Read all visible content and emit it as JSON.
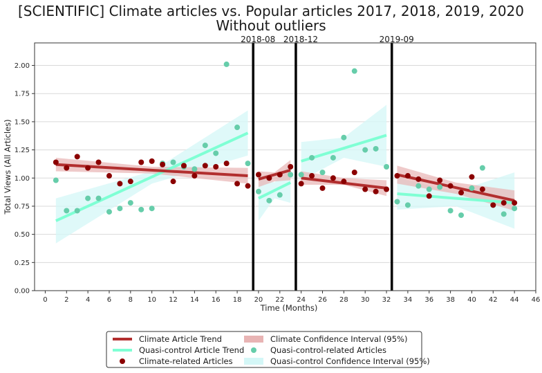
{
  "chart_data": {
    "type": "scatter",
    "title": "[SCIENTIFIC] Climate articles vs. Popular articles 2017, 2018, 2019, 2020",
    "subtitle": "Without outliers",
    "xlabel": "Time (Months)",
    "ylabel": "Total Views (All Articles)",
    "xlim": [
      -1,
      46
    ],
    "ylim": [
      0,
      2.2
    ],
    "xticks": [
      0,
      2,
      4,
      6,
      8,
      10,
      12,
      14,
      16,
      18,
      20,
      22,
      24,
      26,
      28,
      30,
      32,
      34,
      36,
      38,
      40,
      42,
      44,
      46
    ],
    "yticks": [
      0.0,
      0.25,
      0.5,
      0.75,
      1.0,
      1.25,
      1.5,
      1.75,
      2.0
    ],
    "grid": "horizontal",
    "legend_position": "bottom-center",
    "vertical_lines": [
      {
        "x": 19.5,
        "label": "2018-08"
      },
      {
        "x": 23.5,
        "label": "2018-12"
      },
      {
        "x": 32.5,
        "label": "2019-09"
      }
    ],
    "colors": {
      "climate_trend": "#b22f2f",
      "climate_points": "#8b0000",
      "climate_ci": "#e8b4b4",
      "quasi_trend": "#7fffd4",
      "quasi_points": "#66cdaa",
      "quasi_ci": "#d4f7f7"
    },
    "series": [
      {
        "name": "Climate-related Articles",
        "kind": "points",
        "x": [
          1,
          2,
          3,
          4,
          5,
          6,
          7,
          8,
          9,
          10,
          11,
          12,
          13,
          14,
          15,
          16,
          17,
          18,
          19,
          20,
          21,
          22,
          23,
          24,
          25,
          26,
          27,
          28,
          29,
          30,
          31,
          32,
          33,
          34,
          35,
          36,
          37,
          38,
          39,
          40,
          41,
          42,
          43,
          44
        ],
        "y": [
          1.14,
          1.09,
          1.19,
          1.09,
          1.14,
          1.02,
          0.95,
          0.97,
          1.14,
          1.15,
          1.12,
          0.97,
          1.11,
          1.02,
          1.11,
          1.1,
          1.13,
          0.95,
          0.93,
          1.03,
          1.0,
          1.03,
          1.1,
          0.95,
          1.02,
          0.91,
          1.0,
          0.97,
          1.05,
          0.9,
          0.88,
          0.9,
          1.02,
          1.02,
          0.99,
          0.84,
          0.98,
          0.93,
          0.87,
          1.01,
          0.9,
          0.76,
          0.78,
          0.78
        ]
      },
      {
        "name": "Quasi-control-related Articles",
        "kind": "points",
        "x": [
          1,
          2,
          3,
          4,
          5,
          6,
          7,
          8,
          9,
          10,
          11,
          12,
          13,
          14,
          15,
          16,
          17,
          18,
          19,
          20,
          21,
          22,
          23,
          24,
          25,
          26,
          27,
          28,
          29,
          30,
          31,
          32,
          33,
          34,
          35,
          36,
          37,
          38,
          39,
          40,
          41,
          42,
          43,
          44
        ],
        "y": [
          0.98,
          0.71,
          0.71,
          0.82,
          0.82,
          0.7,
          0.73,
          0.78,
          0.72,
          0.73,
          1.13,
          1.14,
          1.1,
          1.08,
          1.29,
          1.22,
          2.01,
          1.45,
          1.13,
          0.88,
          0.8,
          0.85,
          1.03,
          1.03,
          1.18,
          1.05,
          1.18,
          1.36,
          1.95,
          1.25,
          1.26,
          1.1,
          0.79,
          0.76,
          0.93,
          0.9,
          0.92,
          0.71,
          0.67,
          0.91,
          1.09,
          0.76,
          0.68,
          0.73
        ]
      },
      {
        "name": "Climate Article Trend",
        "kind": "trend",
        "segments": [
          {
            "x": [
              1,
              19
            ],
            "y": [
              1.12,
              1.02
            ]
          },
          {
            "x": [
              20,
              23
            ],
            "y": [
              0.99,
              1.07
            ]
          },
          {
            "x": [
              24,
              32
            ],
            "y": [
              1.0,
              0.91
            ]
          },
          {
            "x": [
              33,
              44
            ],
            "y": [
              1.03,
              0.8
            ]
          }
        ]
      },
      {
        "name": "Quasi-control Article Trend",
        "kind": "trend",
        "segments": [
          {
            "x": [
              1,
              19
            ],
            "y": [
              0.62,
              1.4
            ]
          },
          {
            "x": [
              20,
              23
            ],
            "y": [
              0.82,
              0.96
            ]
          },
          {
            "x": [
              24,
              32
            ],
            "y": [
              1.15,
              1.38
            ]
          },
          {
            "x": [
              33,
              44
            ],
            "y": [
              0.86,
              0.78
            ]
          }
        ]
      },
      {
        "name": "Climate Confidence Interval (95%)",
        "kind": "band",
        "segments": [
          {
            "x": [
              1,
              10,
              19
            ],
            "lower": [
              1.06,
              1.04,
              0.95
            ],
            "upper": [
              1.18,
              1.1,
              1.09
            ]
          },
          {
            "x": [
              20,
              21.5,
              23
            ],
            "lower": [
              0.92,
              0.97,
              0.98
            ],
            "upper": [
              1.06,
              1.05,
              1.16
            ]
          },
          {
            "x": [
              24,
              28,
              32
            ],
            "lower": [
              0.94,
              0.94,
              0.84
            ],
            "upper": [
              1.06,
              1.0,
              0.98
            ]
          },
          {
            "x": [
              33,
              38.5,
              44
            ],
            "lower": [
              0.95,
              0.86,
              0.71
            ],
            "upper": [
              1.11,
              0.96,
              0.89
            ]
          }
        ]
      },
      {
        "name": "Quasi-control Confidence Interval (95%)",
        "kind": "band",
        "segments": [
          {
            "x": [
              1,
              10,
              19
            ],
            "lower": [
              0.42,
              0.95,
              1.2
            ],
            "upper": [
              0.82,
              1.06,
              1.6
            ]
          },
          {
            "x": [
              20,
              21.5,
              23
            ],
            "lower": [
              0.62,
              0.82,
              0.78
            ],
            "upper": [
              1.02,
              0.96,
              1.14
            ]
          },
          {
            "x": [
              24,
              28,
              32
            ],
            "lower": [
              0.98,
              1.18,
              1.1
            ],
            "upper": [
              1.32,
              1.36,
              1.65
            ]
          },
          {
            "x": [
              33,
              38.5,
              44
            ],
            "lower": [
              0.72,
              0.75,
              0.55
            ],
            "upper": [
              1.0,
              0.88,
              1.05
            ]
          }
        ]
      }
    ],
    "legend": [
      "Climate Article Trend",
      "Quasi-control Article Trend",
      "Climate-related Articles",
      "Climate Confidence Interval (95%)",
      "Quasi-control-related Articles",
      "Quasi-control Confidence Interval (95%)"
    ]
  }
}
